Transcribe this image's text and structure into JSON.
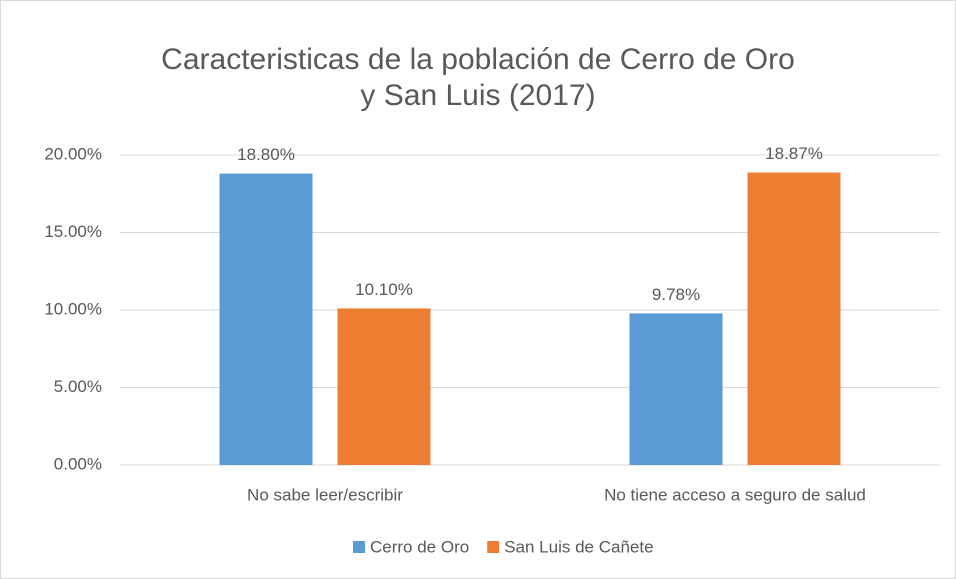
{
  "chart_data": {
    "type": "bar",
    "title": "Caracteristicas de la población de Cerro de Oro y San Luis (2017)",
    "categories": [
      "No sabe leer/escribir",
      "No tiene acceso a seguro de salud"
    ],
    "series": [
      {
        "name": "Cerro de Oro",
        "color": "#5b9bd5",
        "values": [
          18.8,
          9.78
        ],
        "value_labels": [
          "18.80%",
          "9.78%"
        ]
      },
      {
        "name": "San Luis de Cañete",
        "color": "#ed7d31",
        "values": [
          10.1,
          18.87
        ],
        "value_labels": [
          "10.10%",
          "18.87%"
        ]
      }
    ],
    "ylim": [
      0,
      20
    ],
    "yticks": [
      {
        "value": 0,
        "label": "0.00%"
      },
      {
        "value": 5,
        "label": "5.00%"
      },
      {
        "value": 10,
        "label": "10.00%"
      },
      {
        "value": 15,
        "label": "15.00%"
      },
      {
        "value": 20,
        "label": "20.00%"
      }
    ],
    "grid": true,
    "legend": "bottom"
  }
}
